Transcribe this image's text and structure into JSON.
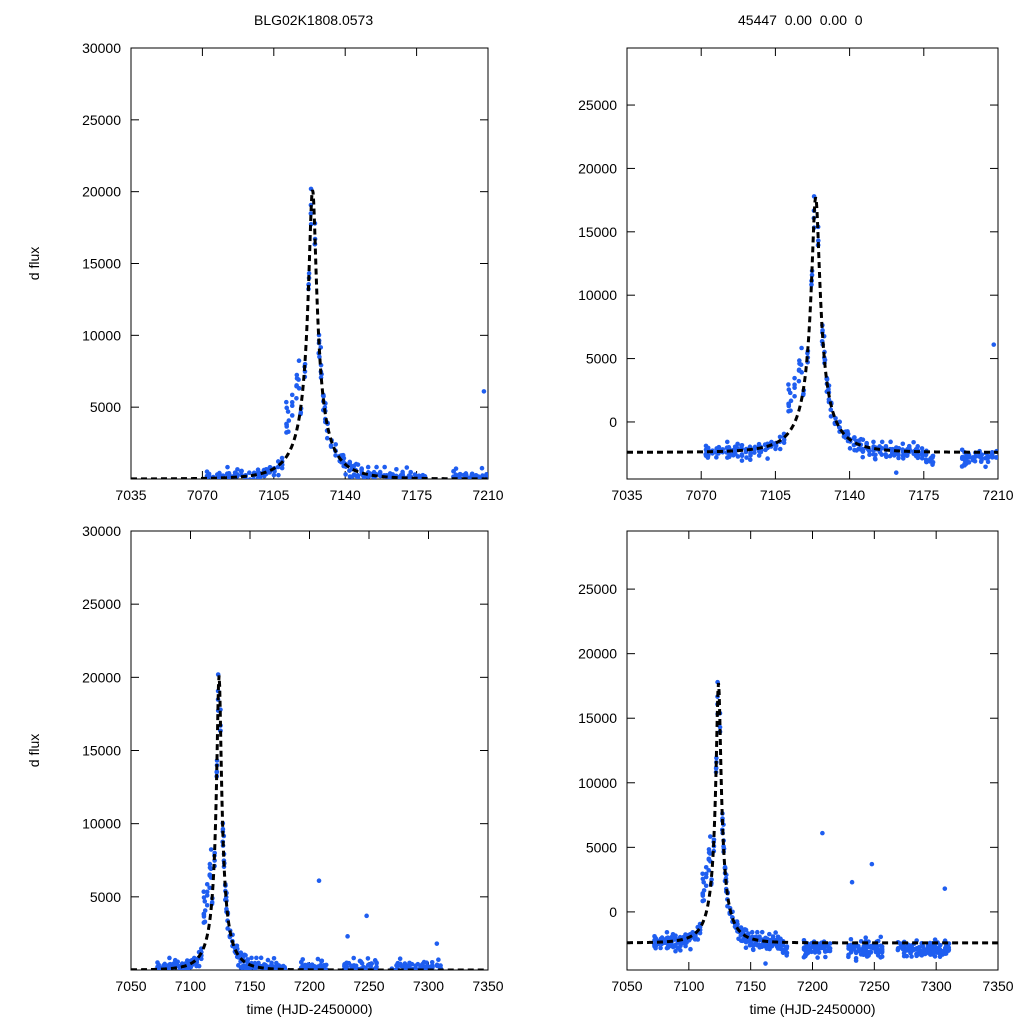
{
  "header": {
    "title_left": "BLG02K1808.0573",
    "title_right": "45447  0.00  0.00  0"
  },
  "colors": {
    "points": "#1f5ef0",
    "model": "#000000",
    "axis": "#000000"
  },
  "chart_data": [
    {
      "id": "top-left",
      "type": "scatter",
      "title": "BLG02K1808.0573",
      "xlabel": "",
      "ylabel": "d flux",
      "xlim": [
        7035,
        7210
      ],
      "ylim": [
        0,
        30000
      ],
      "xticks": [
        7035,
        7070,
        7105,
        7140,
        7175,
        7210
      ],
      "yticks": [
        5000,
        10000,
        15000,
        20000,
        25000,
        30000
      ],
      "model": {
        "type": "dashed-line",
        "t0": 7124,
        "tE": 18,
        "u0": 0.107,
        "fs": 2400,
        "fb": 0
      }
    },
    {
      "id": "top-right",
      "type": "scatter",
      "title": "45447  0.00  0.00  0",
      "xlabel": "",
      "ylabel": "",
      "xlim": [
        7035,
        7210
      ],
      "ylim": [
        -4500,
        29500
      ],
      "xticks": [
        7035,
        7070,
        7105,
        7140,
        7175,
        7210
      ],
      "yticks": [
        0,
        5000,
        10000,
        15000,
        20000,
        25000
      ],
      "model": {
        "type": "dashed-line",
        "t0": 7124,
        "tE": 18,
        "u0": 0.107,
        "fs": 2400,
        "fb": -2400
      }
    },
    {
      "id": "bottom-left",
      "type": "scatter",
      "title": "",
      "xlabel": "time (HJD-2450000)",
      "ylabel": "d flux",
      "xlim": [
        7050,
        7350
      ],
      "ylim": [
        0,
        30000
      ],
      "xticks": [
        7050,
        7100,
        7150,
        7200,
        7250,
        7300,
        7350
      ],
      "yticks": [
        5000,
        10000,
        15000,
        20000,
        25000,
        30000
      ],
      "model": {
        "type": "dashed-line",
        "t0": 7124,
        "tE": 18,
        "u0": 0.107,
        "fs": 2400,
        "fb": 0
      }
    },
    {
      "id": "bottom-right",
      "type": "scatter",
      "title": "",
      "xlabel": "time (HJD-2450000)",
      "ylabel": "",
      "xlim": [
        7050,
        7350
      ],
      "ylim": [
        -4500,
        29500
      ],
      "xticks": [
        7050,
        7100,
        7150,
        7200,
        7250,
        7300,
        7350
      ],
      "yticks": [
        0,
        5000,
        10000,
        15000,
        20000,
        25000
      ],
      "model": {
        "type": "dashed-line",
        "t0": 7124,
        "tE": 18,
        "u0": 0.107,
        "fs": 2400,
        "fb": -2400
      }
    }
  ],
  "observations": {
    "start": 7072,
    "end": 7310,
    "seasonal_gaps": [
      [
        7180,
        7192
      ],
      [
        7215,
        7228
      ],
      [
        7258,
        7268
      ]
    ],
    "noise_sigma": 500,
    "anomaly": {
      "start": 7111,
      "end": 7118,
      "boost": 3000
    },
    "outliers": [
      {
        "t": 7208,
        "dflux": 6100
      },
      {
        "t": 7248,
        "dflux": 3700
      },
      {
        "t": 7162,
        "dflux": -4000
      },
      {
        "t": 7232,
        "dflux": 2300
      },
      {
        "t": 7307,
        "dflux": 1800
      }
    ]
  }
}
